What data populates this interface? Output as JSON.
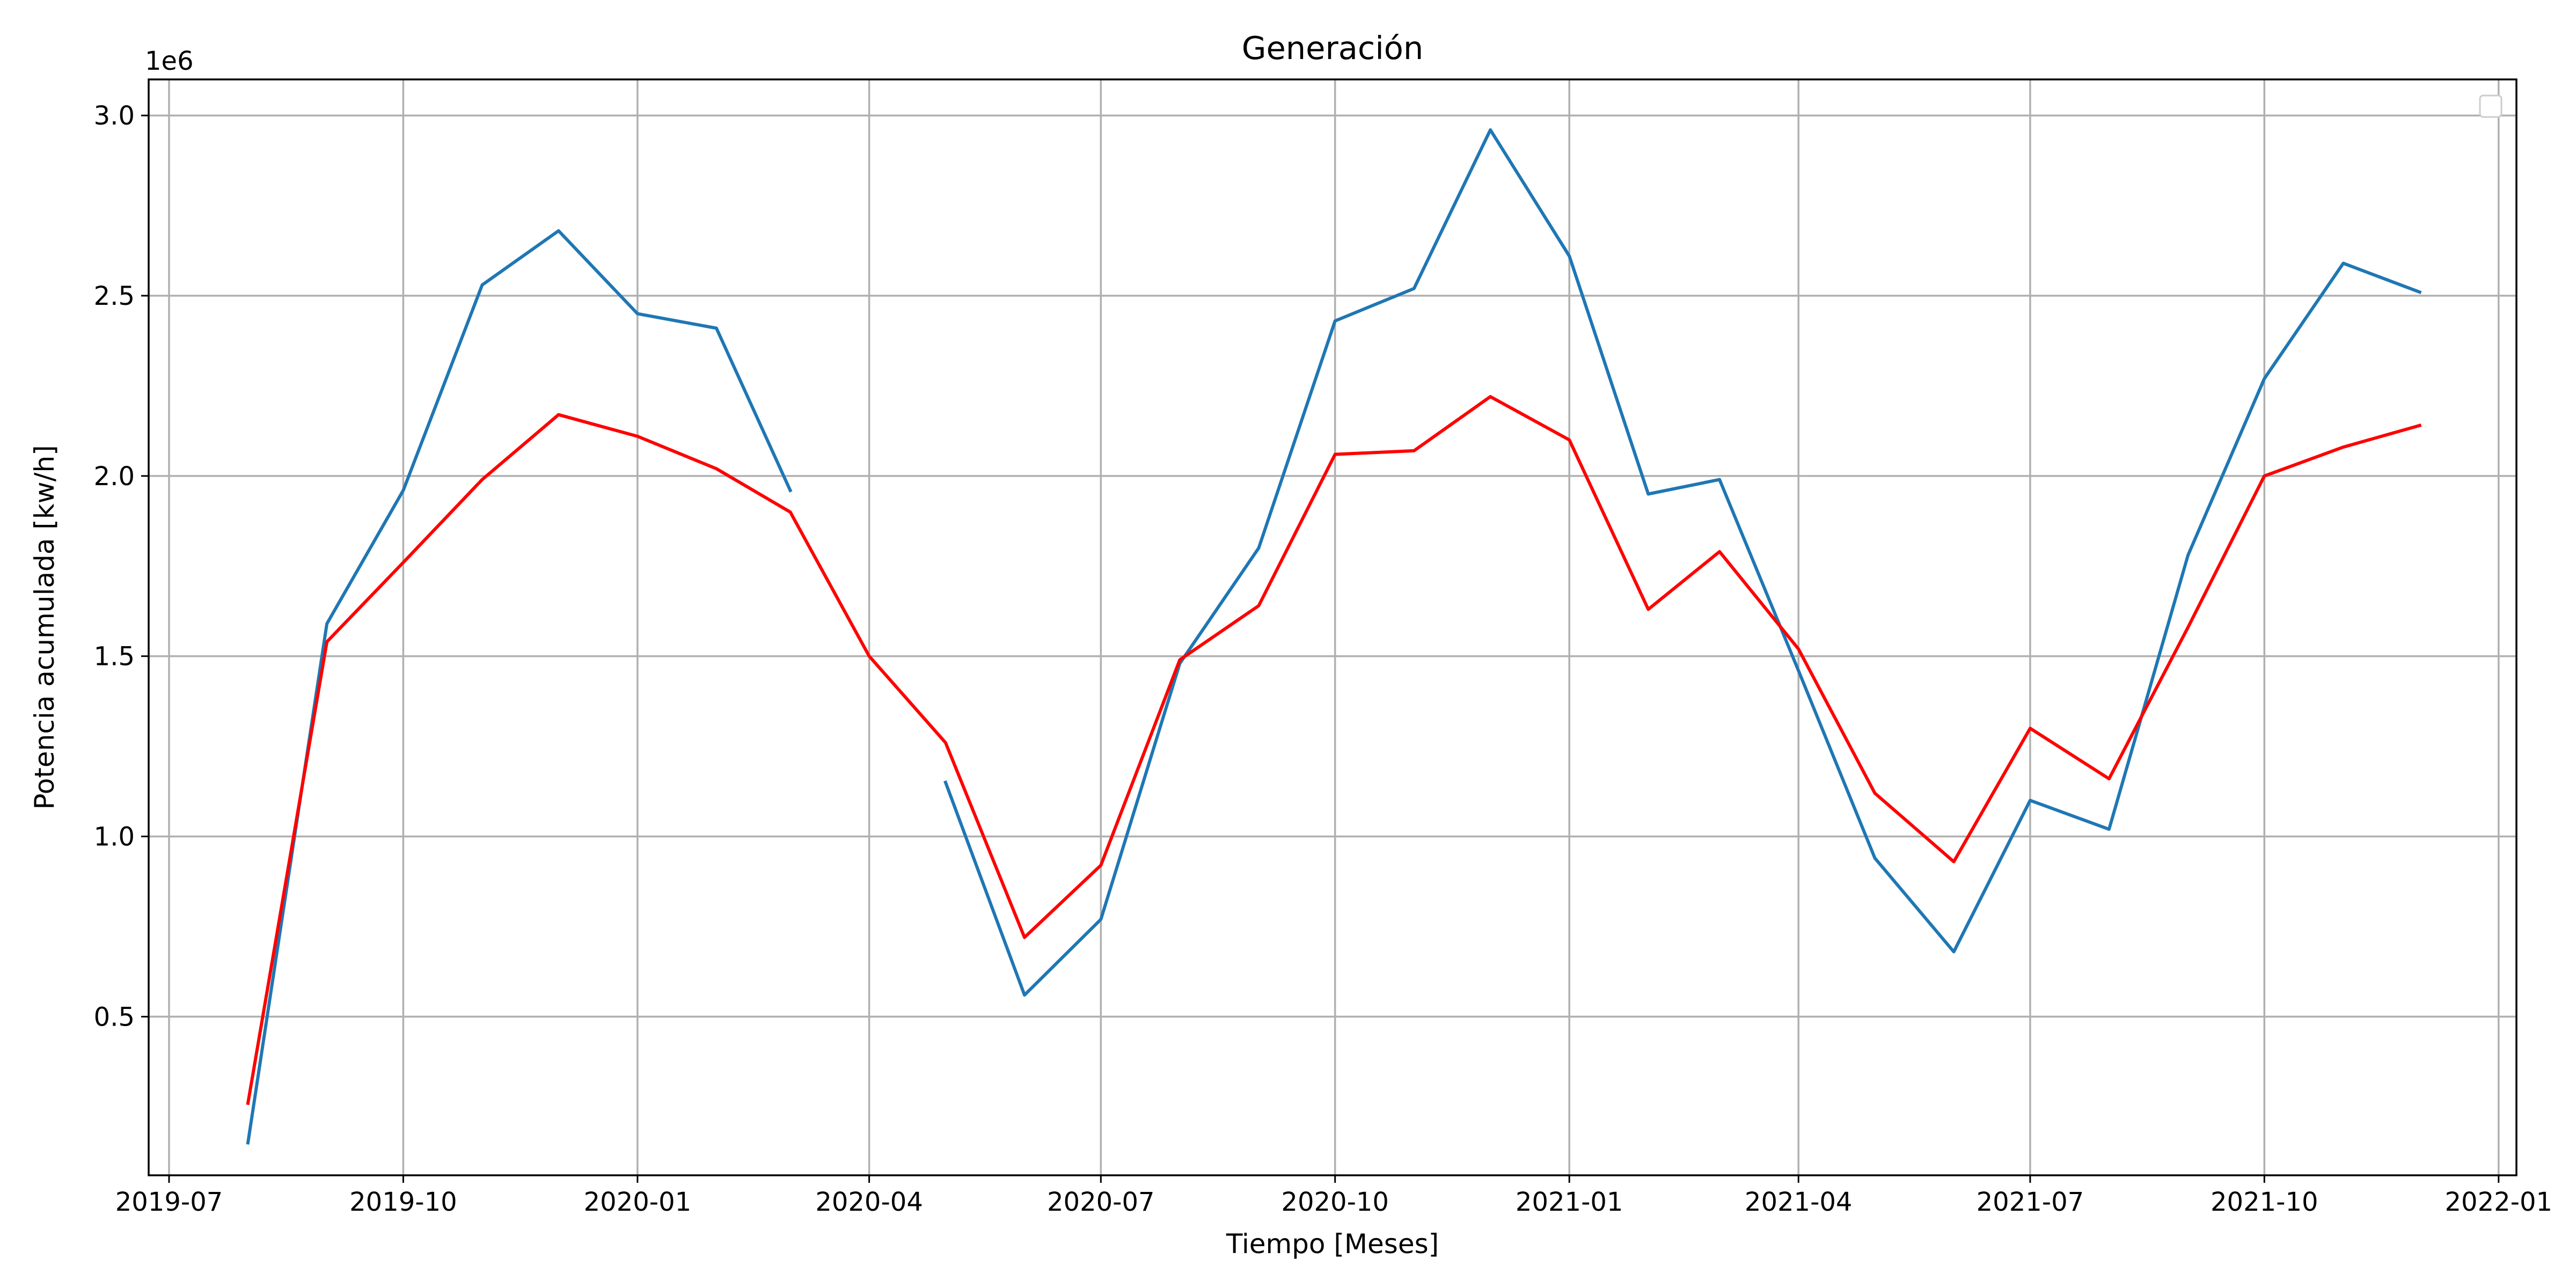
{
  "chart_data": {
    "type": "line",
    "title": "Generación",
    "xlabel": "Tiempo [Meses]",
    "ylabel": "Potencia acumulada [kw/h]",
    "y_offset_label": "1e6",
    "grid": true,
    "legend": "top-right (empty)",
    "x_type": "date",
    "xlim": [
      "2019-06-23",
      "2022-01-08"
    ],
    "ylim": [
      0.06,
      3.1
    ],
    "x_ticks": [
      "2019-07-01",
      "2019-10-01",
      "2020-01-01",
      "2020-04-01",
      "2020-07-01",
      "2020-10-01",
      "2021-01-01",
      "2021-04-01",
      "2021-07-01",
      "2021-10-01",
      "2022-01-01"
    ],
    "x_tick_labels": [
      "2019-07",
      "2019-10",
      "2020-01",
      "2020-04",
      "2020-07",
      "2020-10",
      "2021-01",
      "2021-04",
      "2021-07",
      "2021-10",
      "2022-01"
    ],
    "y_ticks": [
      0.5,
      1.0,
      1.5,
      2.0,
      2.5,
      3.0
    ],
    "y_tick_labels": [
      "0.5",
      "1.0",
      "1.5",
      "2.0",
      "2.5",
      "3.0"
    ],
    "x": [
      "2019-08-01",
      "2019-09-01",
      "2019-10-01",
      "2019-11-01",
      "2019-12-01",
      "2020-01-01",
      "2020-02-01",
      "2020-03-01",
      "2020-04-01",
      "2020-05-01",
      "2020-06-01",
      "2020-07-01",
      "2020-08-01",
      "2020-09-01",
      "2020-10-01",
      "2020-11-01",
      "2020-12-01",
      "2021-01-01",
      "2021-02-01",
      "2021-03-01",
      "2021-04-01",
      "2021-05-01",
      "2021-06-01",
      "2021-07-01",
      "2021-08-01",
      "2021-09-01",
      "2021-10-01",
      "2021-11-01",
      "2021-12-01"
    ],
    "series": [
      {
        "color": "#1f77b4",
        "values": [
          0.15,
          1.59,
          1.96,
          2.53,
          2.68,
          2.45,
          2.41,
          1.96,
          null,
          1.15,
          0.56,
          0.77,
          1.48,
          1.8,
          2.43,
          2.52,
          2.96,
          2.61,
          1.95,
          1.99,
          1.46,
          0.94,
          0.68,
          1.1,
          1.02,
          1.78,
          2.27,
          2.59,
          2.51
        ]
      },
      {
        "color": "#ff0000",
        "values": [
          0.26,
          1.54,
          1.76,
          1.99,
          2.17,
          2.11,
          2.02,
          1.9,
          1.5,
          1.26,
          0.72,
          0.92,
          1.49,
          1.64,
          2.06,
          2.07,
          2.22,
          2.1,
          1.63,
          1.79,
          1.52,
          1.12,
          0.93,
          1.3,
          1.16,
          1.58,
          2.0,
          2.08,
          2.14
        ]
      }
    ]
  }
}
